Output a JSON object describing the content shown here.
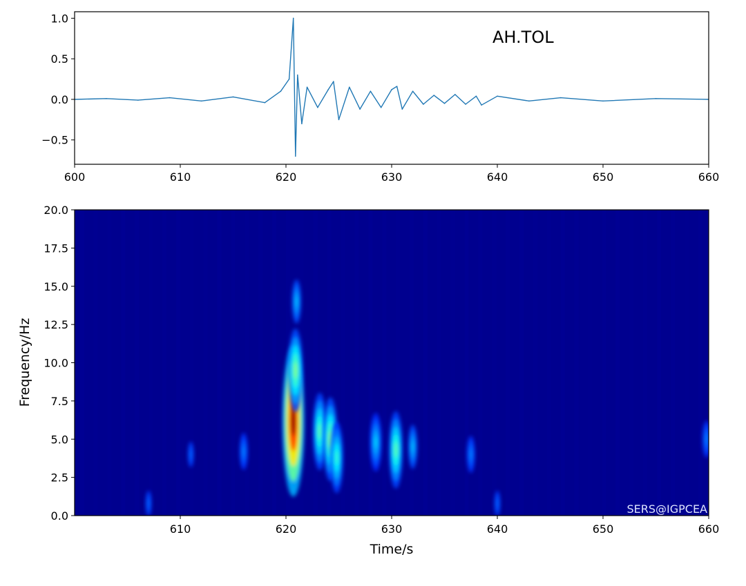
{
  "chart_data": [
    {
      "type": "line",
      "annotation": "AH.TOL",
      "xlim": [
        600,
        660
      ],
      "ylim": [
        -0.8,
        1.08
      ],
      "xticks": [
        "600",
        "610",
        "620",
        "630",
        "640",
        "650",
        "660"
      ],
      "yticks": [
        "1.0",
        "0.5",
        "0.0",
        "−0.5"
      ],
      "line_color": "#1f77b4",
      "series": [
        {
          "x": [
            600,
            603,
            606,
            609,
            612,
            615,
            618,
            619.5,
            620.3,
            620.7,
            620.9,
            621.1,
            621.5,
            622,
            623,
            624,
            624.5,
            625,
            626,
            627,
            628,
            629,
            630,
            630.5,
            631,
            632,
            633,
            634,
            635,
            636,
            637,
            638,
            638.5,
            640,
            643,
            646,
            650,
            655,
            660
          ],
          "values": [
            0.0,
            0.01,
            -0.01,
            0.02,
            -0.02,
            0.03,
            -0.04,
            0.1,
            0.25,
            1.0,
            -0.7,
            0.3,
            -0.3,
            0.15,
            -0.1,
            0.12,
            0.22,
            -0.25,
            0.15,
            -0.12,
            0.1,
            -0.1,
            0.12,
            0.16,
            -0.12,
            0.1,
            -0.06,
            0.05,
            -0.05,
            0.06,
            -0.06,
            0.04,
            -0.07,
            0.04,
            -0.02,
            0.02,
            -0.02,
            0.01,
            0.0
          ]
        }
      ]
    },
    {
      "type": "heatmap",
      "xlabel": "Time/s",
      "ylabel": "Frequency/Hz",
      "xlim": [
        600,
        660
      ],
      "ylim": [
        0,
        20
      ],
      "xticks": [
        "610",
        "620",
        "630",
        "640",
        "650",
        "660"
      ],
      "yticks": [
        "20.0",
        "17.5",
        "15.0",
        "12.5",
        "10.0",
        "7.5",
        "5.0",
        "2.5",
        "0.0"
      ],
      "colormap": "jet",
      "watermark": "SERS@IGPCEA",
      "hotspots": [
        {
          "t": 620.7,
          "f": 6.2,
          "value": 1.0
        },
        {
          "t": 620.9,
          "f": 9.5,
          "value": 0.45
        },
        {
          "t": 621.0,
          "f": 14.0,
          "value": 0.22
        },
        {
          "t": 623.2,
          "f": 5.5,
          "value": 0.4
        },
        {
          "t": 624.2,
          "f": 5.0,
          "value": 0.45
        },
        {
          "t": 624.8,
          "f": 3.8,
          "value": 0.35
        },
        {
          "t": 630.4,
          "f": 4.3,
          "value": 0.4
        },
        {
          "t": 628.5,
          "f": 4.8,
          "value": 0.25
        },
        {
          "t": 632.0,
          "f": 4.5,
          "value": 0.22
        },
        {
          "t": 616.0,
          "f": 4.2,
          "value": 0.15
        },
        {
          "t": 611.0,
          "f": 4.0,
          "value": 0.12
        },
        {
          "t": 637.5,
          "f": 4.0,
          "value": 0.15
        },
        {
          "t": 640.0,
          "f": 0.8,
          "value": 0.12
        },
        {
          "t": 607.0,
          "f": 0.8,
          "value": 0.12
        },
        {
          "t": 659.8,
          "f": 5.0,
          "value": 0.15
        }
      ]
    }
  ]
}
